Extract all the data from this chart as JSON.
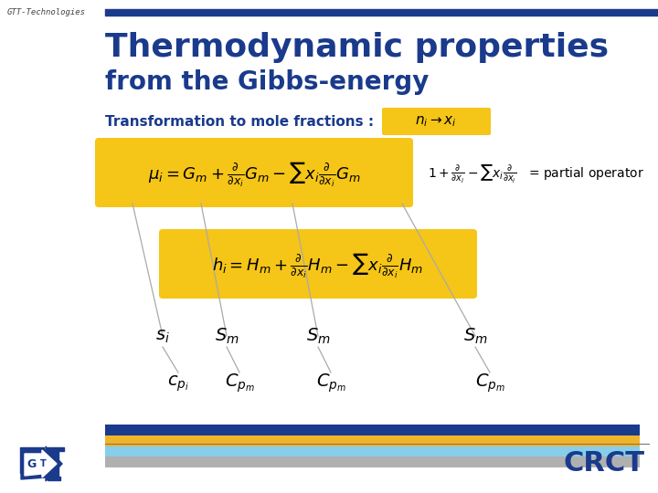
{
  "title_line1": "Thermodynamic properties",
  "title_line2": "from the Gibbs-energy",
  "title_color": "#1a3a8c",
  "subtitle_color": "#1a3a8c",
  "transform_label": "Transformation to mole fractions :  ",
  "transform_label_color": "#1a3a8c",
  "formula_box_color": "#F5C518",
  "gtt_text": "GTT-Technologies",
  "top_bar_color": "#1a3a8c",
  "crct_color": "#1a3a8c",
  "diagonal_line_color": "#aaaaaa",
  "bottom_bar_colors": [
    "#1a3a8c",
    "#F0B429",
    "#87CEEB",
    "#a8a8a8"
  ],
  "s_labels": [
    "$s_i$",
    "$S_m$",
    "$S_m$",
    "$S_m$"
  ],
  "cp_labels": [
    "$c_{p_i}$",
    "$C_{p_m}$",
    "$C_{p_m}$",
    "$C_{p_m}$"
  ]
}
